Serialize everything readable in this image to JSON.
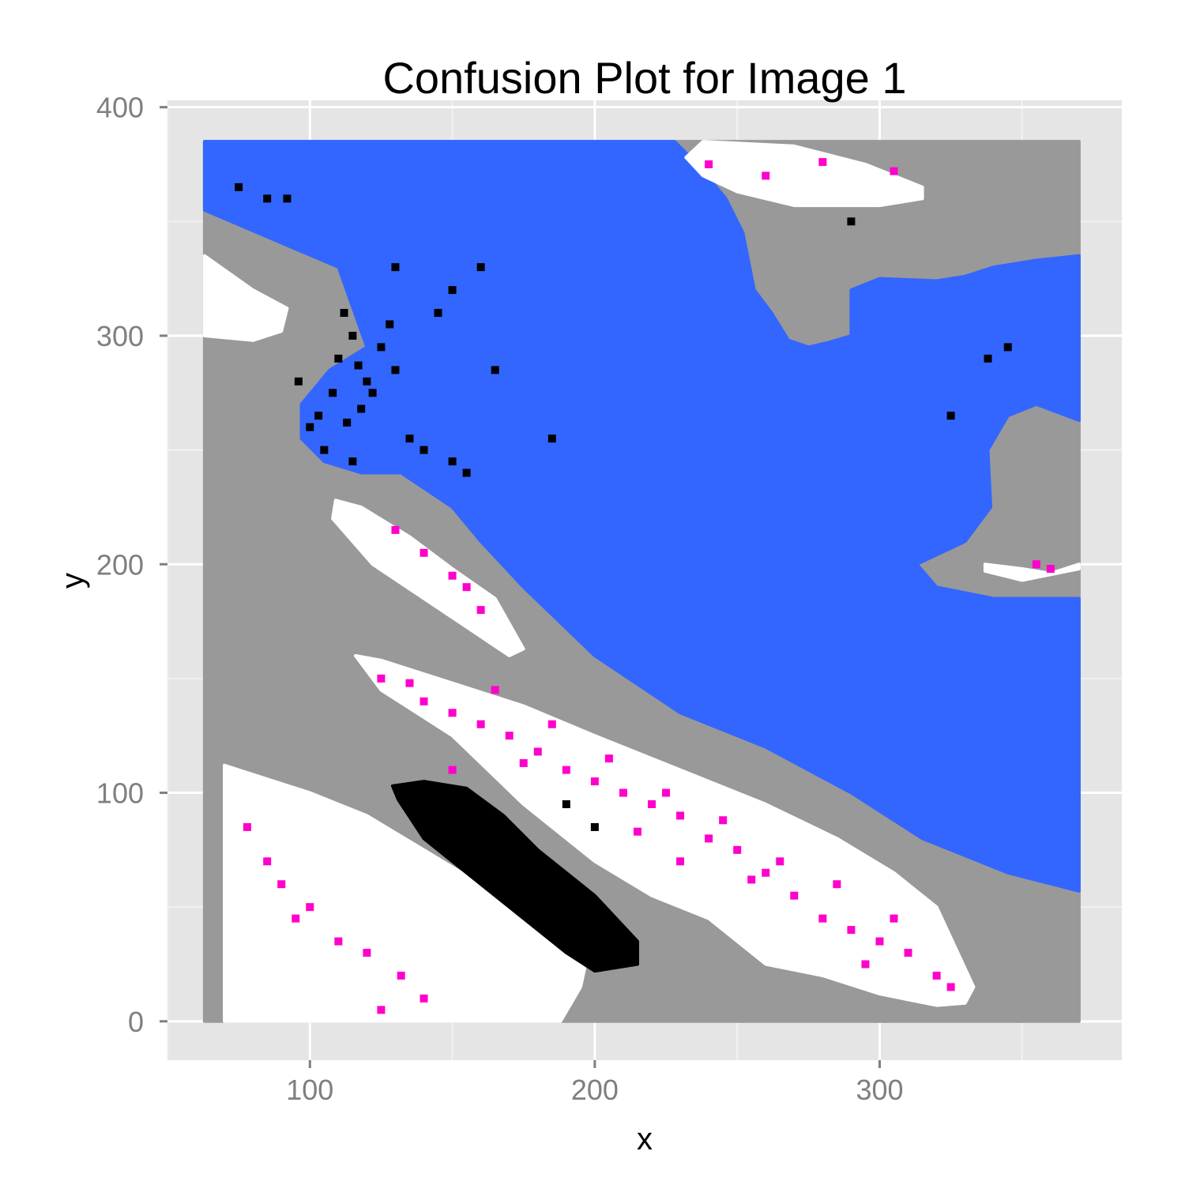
{
  "chart_data": {
    "type": "heatmap",
    "title": "Confusion Plot for Image 1",
    "xlabel": "x",
    "ylabel": "y",
    "xlim": [
      50,
      385
    ],
    "ylim": [
      -17,
      403
    ],
    "x_ticks": [
      100,
      200,
      300
    ],
    "x_tick_labels": [
      "100",
      "200",
      "300"
    ],
    "y_ticks": [
      0,
      100,
      200,
      300,
      400
    ],
    "y_tick_labels": [
      "0",
      "100",
      "200",
      "300",
      "400"
    ],
    "grid": true,
    "legend": "none",
    "colors": {
      "panel_background": "#e5e5e5",
      "grid": "#ffffff",
      "gray": "#999999",
      "blue": "#3366ff",
      "white": "#ffffff",
      "black": "#000000",
      "magenta": "#ff00cc"
    },
    "regions": [
      {
        "color": "gray",
        "points": [
          [
            63,
            385
          ],
          [
            370,
            385
          ],
          [
            370,
            0
          ],
          [
            63,
            0
          ]
        ]
      },
      {
        "color": "blue",
        "points": [
          [
            63,
            385
          ],
          [
            228,
            385
          ],
          [
            236,
            375
          ],
          [
            246,
            360
          ],
          [
            252,
            345
          ],
          [
            256,
            320
          ],
          [
            262,
            310
          ],
          [
            268,
            298
          ],
          [
            275,
            295
          ],
          [
            282,
            297
          ],
          [
            290,
            300
          ],
          [
            290,
            320
          ],
          [
            300,
            325
          ],
          [
            320,
            324
          ],
          [
            330,
            326
          ],
          [
            340,
            330
          ],
          [
            355,
            333
          ],
          [
            370,
            335
          ],
          [
            370,
            263
          ],
          [
            355,
            270
          ],
          [
            345,
            265
          ],
          [
            338,
            250
          ],
          [
            339,
            225
          ],
          [
            330,
            210
          ],
          [
            313,
            200
          ],
          [
            320,
            190
          ],
          [
            340,
            185
          ],
          [
            370,
            185
          ],
          [
            370,
            57
          ],
          [
            345,
            65
          ],
          [
            315,
            80
          ],
          [
            290,
            100
          ],
          [
            260,
            120
          ],
          [
            230,
            135
          ],
          [
            200,
            160
          ],
          [
            175,
            190
          ],
          [
            160,
            210
          ],
          [
            150,
            225
          ],
          [
            132,
            240
          ],
          [
            118,
            240
          ],
          [
            105,
            245
          ],
          [
            97,
            255
          ],
          [
            97,
            270
          ],
          [
            107,
            285
          ],
          [
            120,
            295
          ],
          [
            110,
            330
          ],
          [
            63,
            355
          ]
        ]
      },
      {
        "color": "white",
        "points": [
          [
            238,
            385
          ],
          [
            270,
            383
          ],
          [
            295,
            375
          ],
          [
            315,
            365
          ],
          [
            315,
            360
          ],
          [
            300,
            357
          ],
          [
            270,
            357
          ],
          [
            260,
            360
          ],
          [
            250,
            363
          ],
          [
            238,
            370
          ],
          [
            232,
            378
          ]
        ]
      },
      {
        "color": "white",
        "points": [
          [
            63,
            335
          ],
          [
            80,
            320
          ],
          [
            92,
            312
          ],
          [
            90,
            302
          ],
          [
            80,
            298
          ],
          [
            63,
            300
          ]
        ]
      },
      {
        "color": "white",
        "points": [
          [
            109,
            228
          ],
          [
            118,
            225
          ],
          [
            135,
            212
          ],
          [
            150,
            198
          ],
          [
            165,
            185
          ],
          [
            175,
            163
          ],
          [
            170,
            160
          ],
          [
            158,
            170
          ],
          [
            140,
            185
          ],
          [
            122,
            200
          ],
          [
            108,
            220
          ]
        ]
      },
      {
        "color": "white",
        "points": [
          [
            116,
            160
          ],
          [
            125,
            158
          ],
          [
            150,
            148
          ],
          [
            175,
            138
          ],
          [
            200,
            125
          ],
          [
            230,
            110
          ],
          [
            260,
            95
          ],
          [
            285,
            80
          ],
          [
            305,
            65
          ],
          [
            320,
            50
          ],
          [
            333,
            15
          ],
          [
            330,
            8
          ],
          [
            320,
            7
          ],
          [
            300,
            12
          ],
          [
            280,
            20
          ],
          [
            260,
            25
          ],
          [
            240,
            45
          ],
          [
            220,
            55
          ],
          [
            200,
            70
          ],
          [
            175,
            95
          ],
          [
            150,
            125
          ],
          [
            125,
            145
          ]
        ]
      },
      {
        "color": "white",
        "points": [
          [
            70,
            112
          ],
          [
            80,
            108
          ],
          [
            100,
            100
          ],
          [
            120,
            90
          ],
          [
            140,
            75
          ],
          [
            160,
            60
          ],
          [
            180,
            45
          ],
          [
            198,
            32
          ],
          [
            195,
            15
          ],
          [
            188,
            0
          ],
          [
            70,
            0
          ]
        ]
      },
      {
        "color": "white",
        "points": [
          [
            337,
            200
          ],
          [
            350,
            198
          ],
          [
            360,
            196
          ],
          [
            370,
            200
          ],
          [
            370,
            198
          ],
          [
            350,
            193
          ],
          [
            337,
            197
          ]
        ]
      },
      {
        "color": "black",
        "points": [
          [
            129,
            103
          ],
          [
            140,
            105
          ],
          [
            155,
            102
          ],
          [
            168,
            90
          ],
          [
            180,
            75
          ],
          [
            200,
            55
          ],
          [
            215,
            35
          ],
          [
            215,
            25
          ],
          [
            200,
            22
          ],
          [
            190,
            30
          ],
          [
            175,
            45
          ],
          [
            155,
            65
          ],
          [
            140,
            80
          ],
          [
            131,
            97
          ]
        ]
      }
    ],
    "speckles": [
      {
        "color": "black",
        "points": [
          [
            110,
            290
          ],
          [
            115,
            300
          ],
          [
            120,
            280
          ],
          [
            108,
            275
          ],
          [
            103,
            265
          ],
          [
            125,
            295
          ],
          [
            128,
            305
          ],
          [
            130,
            285
          ],
          [
            112,
            310
          ],
          [
            118,
            268
          ],
          [
            100,
            260
          ],
          [
            105,
            250
          ],
          [
            115,
            245
          ],
          [
            135,
            255
          ],
          [
            140,
            250
          ],
          [
            150,
            245
          ],
          [
            155,
            240
          ],
          [
            145,
            310
          ],
          [
            150,
            320
          ],
          [
            160,
            330
          ],
          [
            165,
            285
          ],
          [
            185,
            255
          ],
          [
            75,
            365
          ],
          [
            85,
            360
          ],
          [
            130,
            330
          ],
          [
            345,
            295
          ],
          [
            338,
            290
          ],
          [
            325,
            265
          ],
          [
            290,
            350
          ],
          [
            190,
            95
          ],
          [
            200,
            85
          ],
          [
            160,
            80
          ],
          [
            175,
            60
          ],
          [
            205,
            45
          ],
          [
            92,
            360
          ],
          [
            117,
            287
          ],
          [
            122,
            275
          ],
          [
            96,
            280
          ],
          [
            113,
            262
          ]
        ]
      },
      {
        "color": "magenta",
        "points": [
          [
            130,
            215
          ],
          [
            140,
            205
          ],
          [
            150,
            195
          ],
          [
            155,
            190
          ],
          [
            160,
            180
          ],
          [
            125,
            150
          ],
          [
            140,
            140
          ],
          [
            150,
            135
          ],
          [
            160,
            130
          ],
          [
            170,
            125
          ],
          [
            180,
            118
          ],
          [
            190,
            110
          ],
          [
            200,
            105
          ],
          [
            210,
            100
          ],
          [
            220,
            95
          ],
          [
            230,
            90
          ],
          [
            240,
            80
          ],
          [
            250,
            75
          ],
          [
            260,
            65
          ],
          [
            270,
            55
          ],
          [
            280,
            45
          ],
          [
            290,
            40
          ],
          [
            300,
            35
          ],
          [
            310,
            30
          ],
          [
            320,
            20
          ],
          [
            325,
            15
          ],
          [
            165,
            145
          ],
          [
            185,
            130
          ],
          [
            205,
            115
          ],
          [
            225,
            100
          ],
          [
            245,
            88
          ],
          [
            265,
            70
          ],
          [
            285,
            60
          ],
          [
            305,
            45
          ],
          [
            78,
            85
          ],
          [
            85,
            70
          ],
          [
            90,
            60
          ],
          [
            100,
            50
          ],
          [
            95,
            45
          ],
          [
            110,
            35
          ],
          [
            120,
            30
          ],
          [
            132,
            20
          ],
          [
            140,
            10
          ],
          [
            125,
            5
          ],
          [
            240,
            375
          ],
          [
            260,
            370
          ],
          [
            280,
            376
          ],
          [
            305,
            372
          ],
          [
            355,
            200
          ],
          [
            360,
            198
          ],
          [
            135,
            148
          ],
          [
            175,
            113
          ],
          [
            215,
            83
          ],
          [
            255,
            62
          ],
          [
            295,
            25
          ],
          [
            150,
            110
          ],
          [
            230,
            70
          ]
        ]
      }
    ]
  }
}
